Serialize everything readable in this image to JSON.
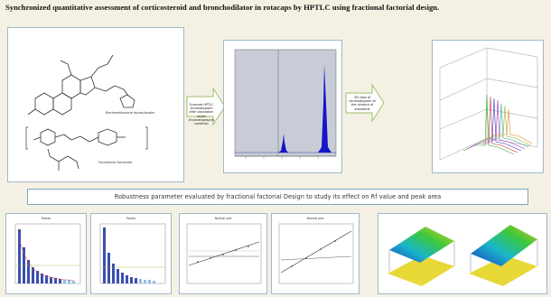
{
  "title": "Synchronized quantitative assessment of corticosteroid and bronchodilator in rotacaps by HPTLC using fractional factorial design.",
  "structures": {
    "compound_1": "Beclomethasone dipropionate",
    "compound_2": "Formoterol fumarate"
  },
  "arrows": [
    {
      "text": "Scanned HPTLC chromatogram after separation under chromatographic condition"
    },
    {
      "text": "3D view of chromatogram of the mixture of standards"
    }
  ],
  "banner": "Robustness parameter evaluated by fractional factorial Design to study its effect on Rf value and peak area",
  "bottom_panels": [
    {
      "title": "Pareto"
    },
    {
      "title": "Pareto"
    },
    {
      "title": "Normal plot"
    },
    {
      "title": "Normal plot"
    }
  ],
  "colors": {
    "background": "#f4f1e4",
    "panel_border": "#9fb8c8",
    "peak": "#1515c8",
    "arrow_fill": "#ffffff",
    "arrow_stroke": "#9fbe6a"
  }
}
